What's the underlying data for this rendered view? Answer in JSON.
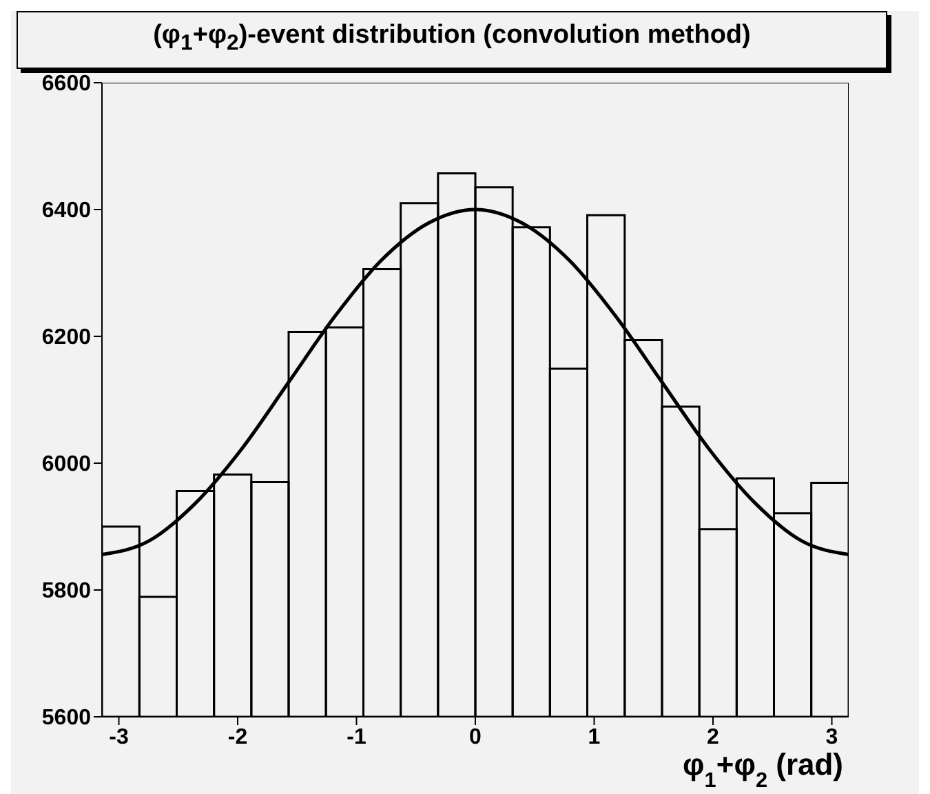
{
  "chart_data": {
    "type": "histogram",
    "title": "(φ$_{1}$+φ$_{2}$)-event distribution (convolution method)",
    "xlabel": "φ$_{1}$+φ$_{2}$ (rad)",
    "bins": [
      -3.142,
      -2.827,
      -2.513,
      -2.199,
      -1.885,
      -1.571,
      -1.257,
      -0.942,
      -0.628,
      -0.314,
      0,
      0.314,
      0.628,
      0.942,
      1.257,
      1.571,
      1.885,
      2.199,
      2.513,
      2.827,
      3.142
    ],
    "series": [
      {
        "color": "#000000",
        "values": [
          5900,
          5789,
          5956,
          5982,
          5970,
          6207,
          6214,
          6306,
          6410,
          6457,
          6435,
          6372,
          6149,
          6391,
          6194,
          6089,
          5896,
          5976,
          5921,
          5969
        ]
      },
      {
        "type": "line",
        "color": "#000000",
        "x": [
          -3.14,
          -2.75,
          -2.36,
          -1.96,
          -1.57,
          -1.18,
          -0.79,
          -0.39,
          0,
          0.39,
          0.79,
          1.18,
          1.57,
          1.96,
          2.36,
          2.75,
          3.14
        ],
        "values": [
          5856,
          5877,
          5936,
          6024,
          6128,
          6232,
          6320,
          6379,
          6400,
          6379,
          6320,
          6232,
          6128,
          6024,
          5936,
          5877,
          5856
        ]
      }
    ],
    "xlim": [
      -3.142,
      3.142
    ],
    "xticks": [
      -3,
      -2,
      -1,
      0,
      1,
      2,
      3
    ],
    "ylim": [
      5600,
      6600
    ],
    "yticks": [
      5600,
      5800,
      6000,
      6200,
      6400,
      6600
    ],
    "grid": false
  }
}
